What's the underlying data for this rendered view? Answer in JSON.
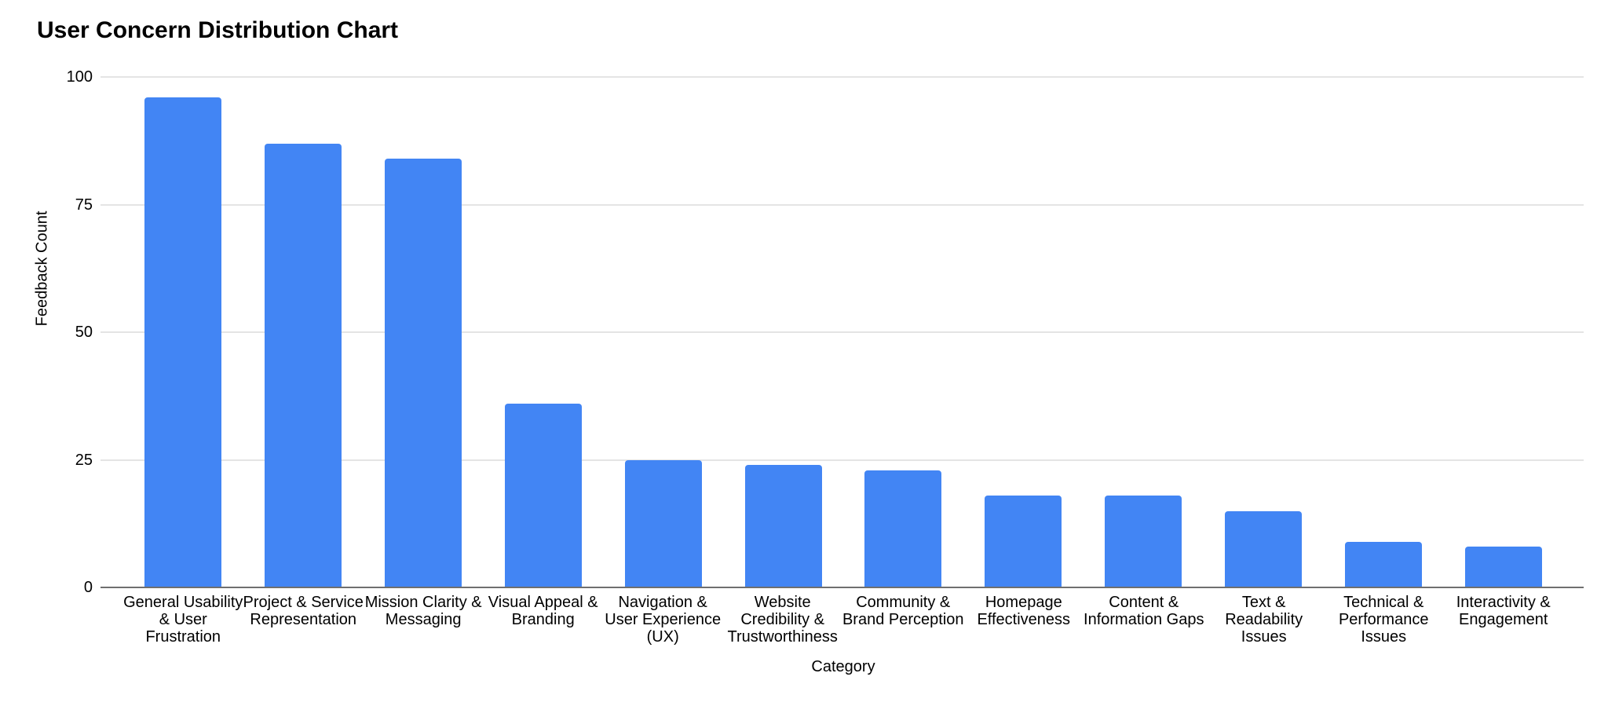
{
  "title": "User Concern Distribution Chart",
  "colors": {
    "bar": "#4285f4",
    "gridline": "#e4e4e4",
    "zero_axis_line": "#6f6f6f",
    "text": "#000000",
    "background": "#ffffff"
  },
  "chart_data": {
    "type": "bar",
    "title": "User Concern Distribution Chart",
    "xlabel": "Category",
    "ylabel": "Feedback Count",
    "ylim": [
      0,
      100
    ],
    "yticks": [
      0,
      25,
      50,
      75,
      100
    ],
    "grid": true,
    "legend": false,
    "bar_color": "#4285f4",
    "categories": [
      "General Usability & User Frustration",
      "Project & Service Representation",
      "Mission Clarity & Messaging",
      "Visual Appeal & Branding",
      "Navigation & User Experience (UX)",
      "Website Credibility & Trustworthiness",
      "Community & Brand Perception",
      "Homepage Effectiveness",
      "Content & Information Gaps",
      "Text & Readability Issues",
      "Technical & Performance Issues",
      "Interactivity & Engagement"
    ],
    "category_label_lines": [
      [
        "General Usability",
        "& User",
        "Frustration"
      ],
      [
        "Project & Service",
        "Representation"
      ],
      [
        "Mission Clarity &",
        "Messaging"
      ],
      [
        "Visual Appeal &",
        "Branding"
      ],
      [
        "Navigation &",
        "User Experience",
        "(UX)"
      ],
      [
        "Website",
        "Credibility &",
        "Trustworthiness"
      ],
      [
        "Community &",
        "Brand Perception"
      ],
      [
        "Homepage",
        "Effectiveness"
      ],
      [
        "Content &",
        "Information Gaps"
      ],
      [
        "Text &",
        "Readability",
        "Issues"
      ],
      [
        "Technical &",
        "Performance",
        "Issues"
      ],
      [
        "Interactivity &",
        "Engagement"
      ]
    ],
    "values": [
      96,
      87,
      84,
      36,
      25,
      24,
      23,
      18,
      18,
      15,
      9,
      8
    ]
  }
}
